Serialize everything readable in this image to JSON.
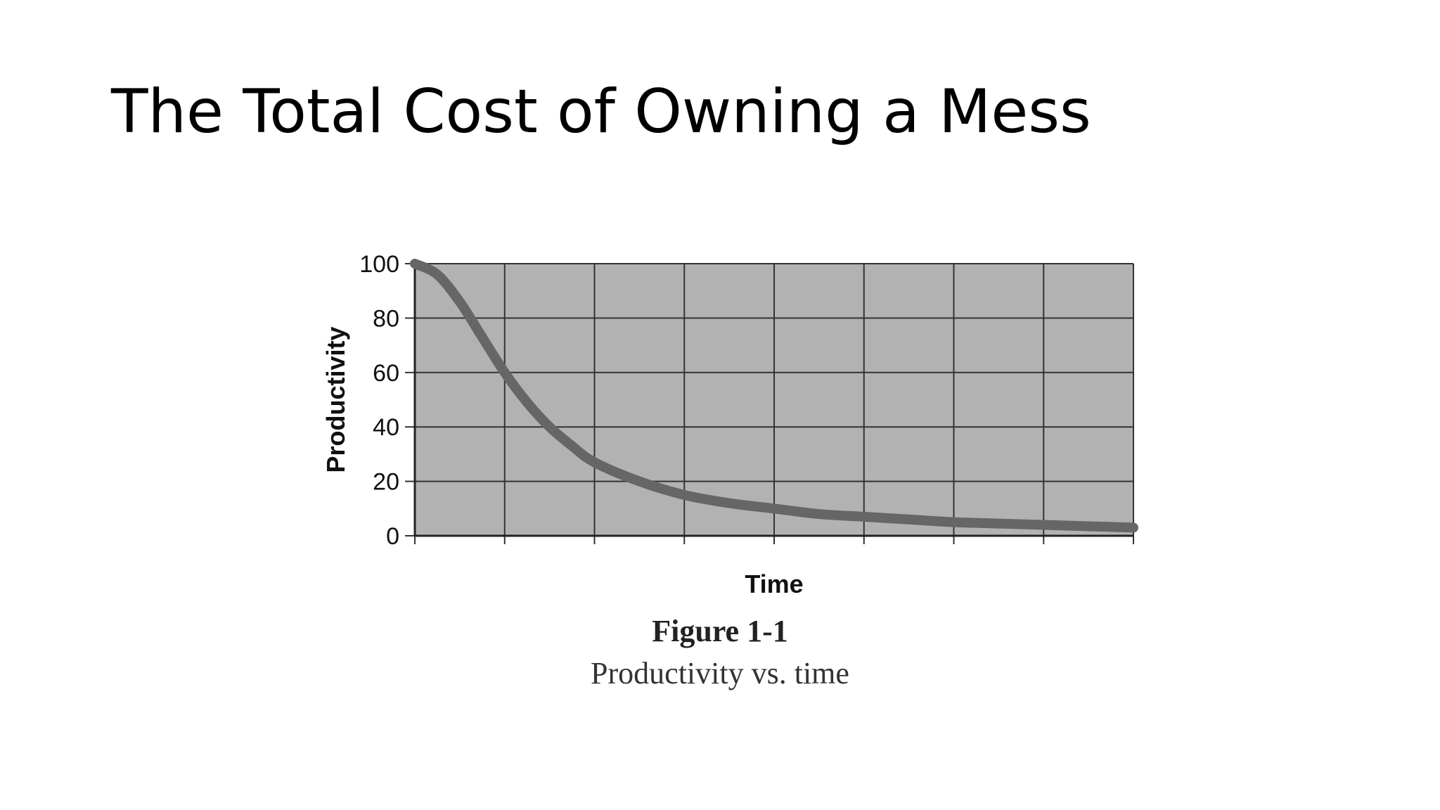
{
  "slide": {
    "title": "The Total Cost of Owning a Mess"
  },
  "figure": {
    "label": "Figure 1-1",
    "caption": "Productivity vs. time"
  },
  "chart_data": {
    "type": "line",
    "title": "",
    "xlabel": "Time",
    "ylabel": "Productivity",
    "ylim": [
      0,
      100
    ],
    "xlim": [
      0,
      8
    ],
    "yticks": [
      "0",
      "20",
      "40",
      "60",
      "80",
      "100"
    ],
    "grid": true,
    "colors": {
      "plot_background": "#b2b2b2",
      "line": "#666666",
      "grid": "#333333"
    },
    "series": [
      {
        "x": [
          0,
          0.25,
          0.5,
          0.75,
          1,
          1.25,
          1.5,
          1.75,
          2,
          2.5,
          3,
          3.5,
          4,
          4.5,
          5,
          5.5,
          6,
          6.5,
          7,
          7.5,
          8
        ],
        "values": [
          100,
          96,
          86,
          73,
          60,
          49,
          40,
          33,
          27,
          20,
          15,
          12,
          10,
          8,
          7,
          6,
          5,
          4.5,
          4,
          3.5,
          3
        ]
      }
    ]
  }
}
